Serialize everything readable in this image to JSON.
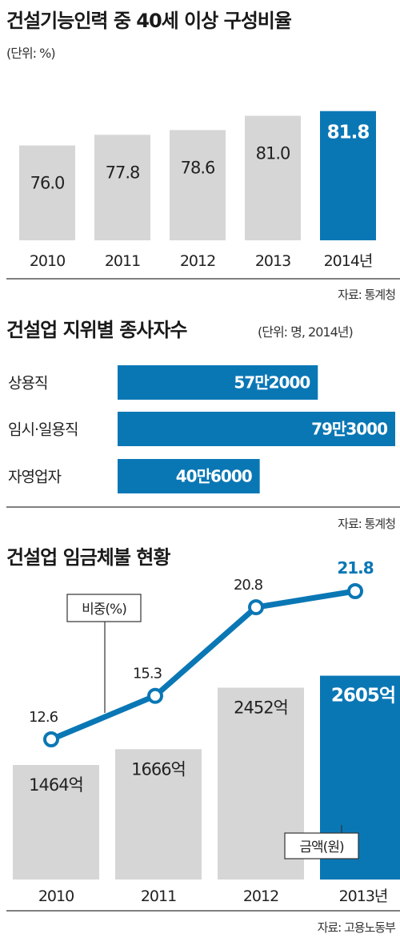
{
  "colors": {
    "accent": "#0a77b5",
    "bar": "#d6d6d6",
    "rule": "#555555"
  },
  "chart_data": [
    {
      "type": "bar",
      "title": "건설기능인력 중 40세 이상 구성비율",
      "unit_label": "(단위: %)",
      "source": "자료: 통계청",
      "categories": [
        "2010",
        "2011",
        "2012",
        "2013",
        "2014년"
      ],
      "value_labels": [
        "76.0",
        "77.8",
        "78.6",
        "81.0",
        "81.8"
      ],
      "values": [
        76.0,
        77.8,
        78.6,
        81.0,
        81.8
      ],
      "highlight_index": 4
    },
    {
      "type": "bar",
      "orientation": "horizontal",
      "title": "건설업 지위별 종사자수",
      "unit_label": "(단위: 명, 2014년)",
      "source": "자료: 통계청",
      "categories": [
        "상용직",
        "임시·일용직",
        "자영업자"
      ],
      "value_labels": [
        "57만2000",
        "79만3000",
        "40만6000"
      ],
      "values": [
        572000,
        793000,
        406000
      ]
    },
    {
      "type": "bar",
      "title": "건설업 임금체불 현황",
      "source": "자료: 고용노동부",
      "categories": [
        "2010",
        "2011",
        "2012",
        "2013년"
      ],
      "series": [
        {
          "name": "금액(원)",
          "type": "bar",
          "values": [
            1464,
            1666,
            2452,
            2605
          ],
          "value_labels": [
            "1464억",
            "1666억",
            "2452억",
            "2605억"
          ],
          "highlight_index": 3
        },
        {
          "name": "비중(%)",
          "type": "line",
          "values": [
            12.6,
            15.3,
            20.8,
            21.8
          ],
          "value_labels": [
            "12.6",
            "15.3",
            "20.8",
            "21.8"
          ],
          "highlight_index": 3
        }
      ]
    }
  ]
}
